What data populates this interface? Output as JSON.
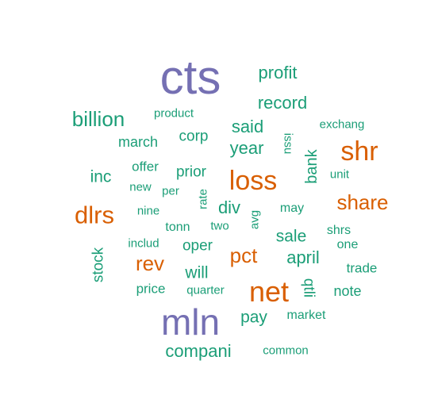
{
  "palette": {
    "purple": "#7570b3",
    "orange": "#d95f02",
    "green": "#1b9e77"
  },
  "words": [
    {
      "id": "cts",
      "text": "cts",
      "color": "purple"
    },
    {
      "id": "mln",
      "text": "mln",
      "color": "purple"
    },
    {
      "id": "net",
      "text": "net",
      "color": "orange"
    },
    {
      "id": "shr",
      "text": "shr",
      "color": "orange"
    },
    {
      "id": "loss",
      "text": "loss",
      "color": "orange"
    },
    {
      "id": "dlrs",
      "text": "dlrs",
      "color": "orange"
    },
    {
      "id": "share",
      "text": "share",
      "color": "orange"
    },
    {
      "id": "pct",
      "text": "pct",
      "color": "orange"
    },
    {
      "id": "rev",
      "text": "rev",
      "color": "orange"
    },
    {
      "id": "billion",
      "text": "billion",
      "color": "green"
    },
    {
      "id": "profit",
      "text": "profit",
      "color": "green"
    },
    {
      "id": "record",
      "text": "record",
      "color": "green"
    },
    {
      "id": "said",
      "text": "said",
      "color": "green"
    },
    {
      "id": "year",
      "text": "year",
      "color": "green"
    },
    {
      "id": "compani",
      "text": "compani",
      "color": "green"
    },
    {
      "id": "product",
      "text": "product",
      "color": "green"
    },
    {
      "id": "march",
      "text": "march",
      "color": "green"
    },
    {
      "id": "corp",
      "text": "corp",
      "color": "green"
    },
    {
      "id": "issu",
      "text": "issu",
      "color": "green"
    },
    {
      "id": "exchang",
      "text": "exchang",
      "color": "green"
    },
    {
      "id": "bank",
      "text": "bank",
      "color": "green"
    },
    {
      "id": "unit",
      "text": "unit",
      "color": "green"
    },
    {
      "id": "offer",
      "text": "offer",
      "color": "green"
    },
    {
      "id": "prior",
      "text": "prior",
      "color": "green"
    },
    {
      "id": "inc",
      "text": "inc",
      "color": "green"
    },
    {
      "id": "new",
      "text": "new",
      "color": "green"
    },
    {
      "id": "per",
      "text": "per",
      "color": "green"
    },
    {
      "id": "rate",
      "text": "rate",
      "color": "green"
    },
    {
      "id": "nine",
      "text": "nine",
      "color": "green"
    },
    {
      "id": "div",
      "text": "div",
      "color": "green"
    },
    {
      "id": "avg",
      "text": "avg",
      "color": "green"
    },
    {
      "id": "may",
      "text": "may",
      "color": "green"
    },
    {
      "id": "tonn",
      "text": "tonn",
      "color": "green"
    },
    {
      "id": "two",
      "text": "two",
      "color": "green"
    },
    {
      "id": "sale",
      "text": "sale",
      "color": "green"
    },
    {
      "id": "shrs",
      "text": "shrs",
      "color": "green"
    },
    {
      "id": "includ",
      "text": "includ",
      "color": "green"
    },
    {
      "id": "oper",
      "text": "oper",
      "color": "green"
    },
    {
      "id": "one",
      "text": "one",
      "color": "green"
    },
    {
      "id": "stock",
      "text": "stock",
      "color": "green"
    },
    {
      "id": "april",
      "text": "april",
      "color": "green"
    },
    {
      "id": "will",
      "text": "will",
      "color": "green"
    },
    {
      "id": "trade",
      "text": "trade",
      "color": "green"
    },
    {
      "id": "qtli",
      "text": "qtli",
      "color": "green"
    },
    {
      "id": "price",
      "text": "price",
      "color": "green"
    },
    {
      "id": "quarter",
      "text": "quarter",
      "color": "green"
    },
    {
      "id": "note",
      "text": "note",
      "color": "green"
    },
    {
      "id": "pay",
      "text": "pay",
      "color": "green"
    },
    {
      "id": "market",
      "text": "market",
      "color": "green"
    },
    {
      "id": "common",
      "text": "common",
      "color": "green"
    }
  ]
}
